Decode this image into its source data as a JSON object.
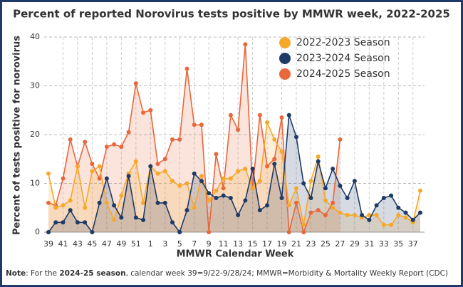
{
  "chart_data": {
    "type": "line",
    "title": "Percent of reported Norovirus tests positive by MMWR week, 2022-2025",
    "x_label": "MMWR Calendar Week",
    "y_label": "Percent of tests positive for norovirus",
    "categories": [
      "39",
      null,
      "41",
      null,
      "43",
      null,
      "45",
      null,
      "47",
      null,
      "49",
      null,
      "51",
      null,
      "1",
      null,
      "3",
      null,
      "5",
      null,
      "7",
      null,
      "9",
      null,
      "11",
      null,
      "13",
      null,
      "15",
      null,
      "17",
      null,
      "19",
      null,
      "21",
      null,
      "23",
      null,
      "25",
      null,
      "27",
      null,
      "29",
      null,
      "31",
      null,
      "33",
      null,
      "35",
      null,
      "37",
      null
    ],
    "series": [
      {
        "name": "2022-2023 Season",
        "color": "#f5a82a",
        "values": [
          12,
          5,
          5.5,
          6.5,
          13.5,
          5,
          12.5,
          13.5,
          6,
          2.5,
          7.5,
          12,
          14.5,
          6,
          13.5,
          12,
          12.5,
          10.5,
          9.5,
          10,
          5,
          11.5,
          6.5,
          8.5,
          11,
          11,
          12.5,
          13,
          9,
          10.5,
          22.5,
          19,
          16.5,
          5.5,
          9,
          1.5,
          10.5,
          15.5,
          6.5,
          5,
          4,
          3.5,
          3.5,
          3,
          3.5,
          3.5,
          1.5,
          1.5,
          3.5,
          3,
          2,
          8.5
        ]
      },
      {
        "name": "2023-2024 Season",
        "color": "#1e3a66",
        "values": [
          0,
          2,
          2,
          4.5,
          2,
          2,
          0,
          6,
          11,
          5.5,
          3,
          11.5,
          3,
          2.5,
          13.5,
          6,
          6,
          2,
          0,
          4.5,
          12,
          10.5,
          8,
          7,
          7.5,
          7,
          3.5,
          6.5,
          13,
          4.5,
          5.5,
          14,
          7,
          24,
          19.5,
          10,
          7,
          14.5,
          9,
          13,
          9.5,
          7,
          10.5,
          3.5,
          2.5,
          5.5,
          7,
          7.5,
          5,
          4,
          2.5,
          4
        ]
      },
      {
        "name": "2024-2025 Season",
        "color": "#e8673c",
        "values": [
          6,
          5.5,
          11,
          19,
          13.5,
          18.5,
          14,
          11,
          17.5,
          18,
          17.5,
          20.5,
          30.5,
          24.5,
          25,
          14,
          15,
          19,
          19,
          33.5,
          22,
          22,
          0,
          16,
          9,
          24,
          21,
          38.5,
          9,
          24,
          13.5,
          15,
          23.5,
          0,
          6,
          0,
          4,
          4.5,
          3.5,
          6,
          19,
          null,
          null,
          null,
          null,
          null,
          null,
          null,
          null,
          null,
          null,
          null
        ]
      }
    ],
    "ylim": [
      0,
      40
    ],
    "yticks": [
      0,
      10,
      20,
      30,
      40
    ],
    "grid": true,
    "legend": "upper right",
    "note": [
      "Note",
      ": For the ",
      "2024-25 season",
      ", calendar week 39=9/22-9/28/24; MMWR=Morbidity & Mortality Weekly Report (CDC)"
    ]
  }
}
